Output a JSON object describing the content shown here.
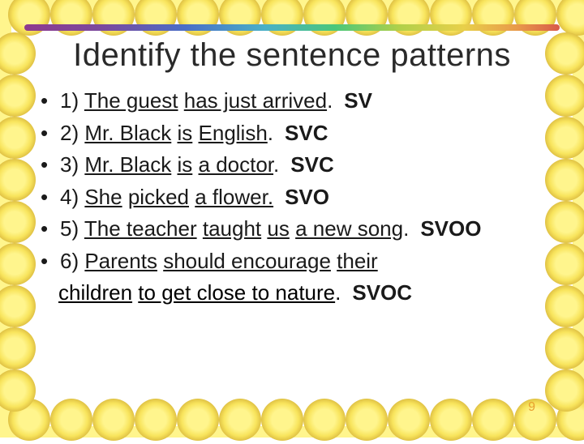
{
  "slide": {
    "background_color": "#fff58d",
    "inner_color": "#ffffff",
    "title": "Identify the sentence patterns",
    "title_fontsize": 40,
    "title_font": "Comic Sans MS",
    "body_fontsize": 26,
    "body_font": "Arial",
    "text_color": "#1a1a1a",
    "accent_gradient": [
      "#8e3a8e",
      "#7a4a9e",
      "#4a6ec7",
      "#4ab0c7",
      "#4ac77a",
      "#b0d04a",
      "#e8d04a",
      "#e89a4a",
      "#d85a4a"
    ],
    "items": [
      {
        "num": "1)",
        "sentence_parts": [
          {
            "t": "The guest",
            "u": true
          },
          {
            "t": "  ",
            "u": false
          },
          {
            "t": "has just arrived",
            "u": true
          },
          {
            "t": ".",
            "u": false
          }
        ],
        "answer": "SV"
      },
      {
        "num": "2)",
        "sentence_parts": [
          {
            "t": "Mr. Black",
            "u": true
          },
          {
            "t": " ",
            "u": false
          },
          {
            "t": "is",
            "u": true
          },
          {
            "t": "  ",
            "u": false
          },
          {
            "t": "English",
            "u": true
          },
          {
            "t": ".",
            "u": false
          }
        ],
        "answer": "SVC"
      },
      {
        "num": "3)",
        "sentence_parts": [
          {
            "t": "Mr. Black",
            "u": true
          },
          {
            "t": " ",
            "u": false
          },
          {
            "t": "is",
            "u": true
          },
          {
            "t": "  ",
            "u": false
          },
          {
            "t": "a doctor",
            "u": true
          },
          {
            "t": ".",
            "u": false
          }
        ],
        "answer": "SVC"
      },
      {
        "num": "4)",
        "sentence_parts": [
          {
            "t": "She",
            "u": true
          },
          {
            "t": "  ",
            "u": false
          },
          {
            "t": "picked",
            "u": true
          },
          {
            "t": "  ",
            "u": false
          },
          {
            "t": "a flower.",
            "u": true
          }
        ],
        "answer": "SVO"
      },
      {
        "num": "5)",
        "sentence_parts": [
          {
            "t": "The teacher",
            "u": true
          },
          {
            "t": " ",
            "u": false
          },
          {
            "t": "taught",
            "u": true
          },
          {
            "t": " ",
            "u": false
          },
          {
            "t": "us",
            "u": true
          },
          {
            "t": " ",
            "u": false
          },
          {
            "t": "a new song",
            "u": true
          },
          {
            "t": ".",
            "u": false
          }
        ],
        "answer": "SVOO"
      },
      {
        "num": "6)",
        "sentence_parts": [
          {
            "t": "Parents",
            "u": true
          },
          {
            "t": "  ",
            "u": false
          },
          {
            "t": "should encourage",
            "u": true
          },
          {
            "t": "  ",
            "u": false
          },
          {
            "t": "their",
            "u": true
          }
        ],
        "answer": ""
      }
    ],
    "continuation": {
      "parts": [
        {
          "t": "children",
          "u": true
        },
        {
          "t": "  ",
          "u": false
        },
        {
          "t": "to get close to nature",
          "u": true
        },
        {
          "t": ".",
          "u": false
        }
      ],
      "answer": "SVOC"
    },
    "page_number": "9"
  }
}
